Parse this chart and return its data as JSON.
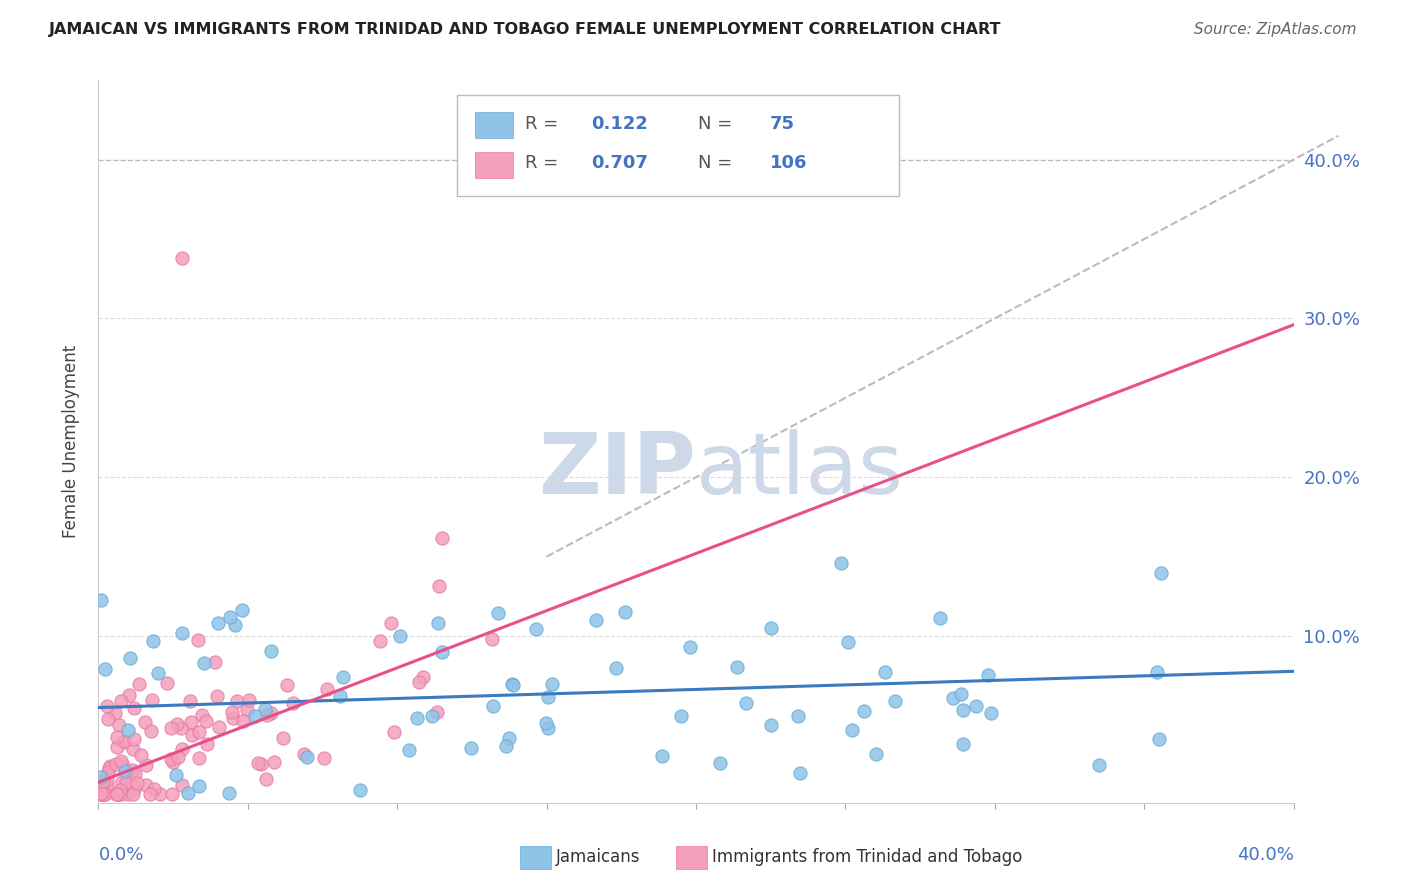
{
  "title": "JAMAICAN VS IMMIGRANTS FROM TRINIDAD AND TOBAGO FEMALE UNEMPLOYMENT CORRELATION CHART",
  "source": "Source: ZipAtlas.com",
  "ylabel": "Female Unemployment",
  "xlim": [
    0.0,
    0.4
  ],
  "ylim": [
    -0.005,
    0.45
  ],
  "blue_R": 0.122,
  "blue_N": 75,
  "pink_R": 0.707,
  "pink_N": 106,
  "blue_color": "#8fc3e8",
  "pink_color": "#f4a0bb",
  "blue_edge_color": "#6aadd5",
  "pink_edge_color": "#e87aaa",
  "blue_trend_color": "#3a7bbf",
  "pink_trend_color": "#e8508a",
  "dashed_line_color": "#bbbbbb",
  "grid_color": "#dddddd",
  "watermark_color": "#cdd8e8",
  "title_color": "#222222",
  "source_color": "#666666",
  "axis_label_color": "#4472c4",
  "legend_R_color": "#555555",
  "legend_N_color": "#4472c4",
  "blue_seed": 12,
  "pink_seed": 77,
  "blue_trend_intercept": 0.055,
  "blue_trend_slope": 0.057,
  "pink_trend_intercept": 0.008,
  "pink_trend_slope": 0.72
}
